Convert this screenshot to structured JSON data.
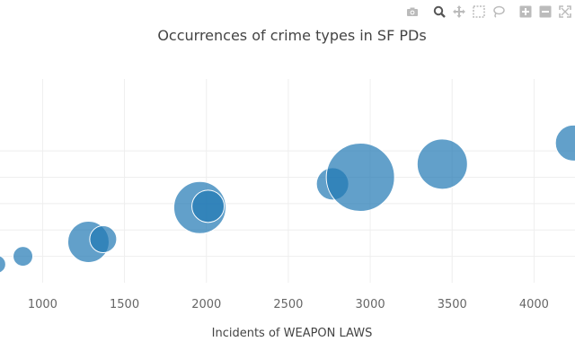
{
  "toolbar": {
    "buttons": [
      {
        "name": "camera-icon"
      },
      {
        "name": "zoom-icon"
      },
      {
        "name": "pan-icon"
      },
      {
        "name": "box-select-icon"
      },
      {
        "name": "lasso-select-icon"
      },
      {
        "name": "zoom-in-icon"
      },
      {
        "name": "zoom-out-icon"
      },
      {
        "name": "autoscale-icon"
      }
    ]
  },
  "chart_data": {
    "type": "scatter",
    "title": "Occurrences of crime types in SF PDs",
    "xlabel": "Incidents of WEAPON LAWS",
    "ylabel": "",
    "xticks": [
      1000,
      1500,
      2000,
      2500,
      3000,
      3500,
      4000
    ],
    "xlim": [
      740,
      4250
    ],
    "ylim": [
      0,
      8
    ],
    "grid": true,
    "color": "#1f77b4",
    "points": [
      {
        "x": 720,
        "y": 0.7,
        "size": 10
      },
      {
        "x": 880,
        "y": 1.0,
        "size": 11
      },
      {
        "x": 1280,
        "y": 1.55,
        "size": 23
      },
      {
        "x": 1370,
        "y": 1.65,
        "size": 15
      },
      {
        "x": 1960,
        "y": 2.85,
        "size": 29
      },
      {
        "x": 2010,
        "y": 2.9,
        "size": 18
      },
      {
        "x": 2770,
        "y": 3.75,
        "size": 18
      },
      {
        "x": 2940,
        "y": 4.0,
        "size": 38
      },
      {
        "x": 3440,
        "y": 4.5,
        "size": 28
      },
      {
        "x": 4240,
        "y": 5.3,
        "size": 20
      }
    ]
  }
}
